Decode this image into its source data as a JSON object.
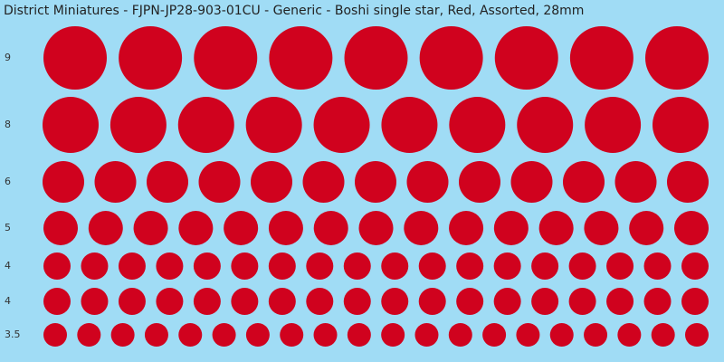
{
  "title": "District Miniatures - FJPN-JP28-903-01CU - Generic - Boshi single star, Red, Assorted, 28mm",
  "rows": [
    "9",
    "8",
    "6",
    "5",
    "4",
    "4",
    "3.5"
  ]
}
